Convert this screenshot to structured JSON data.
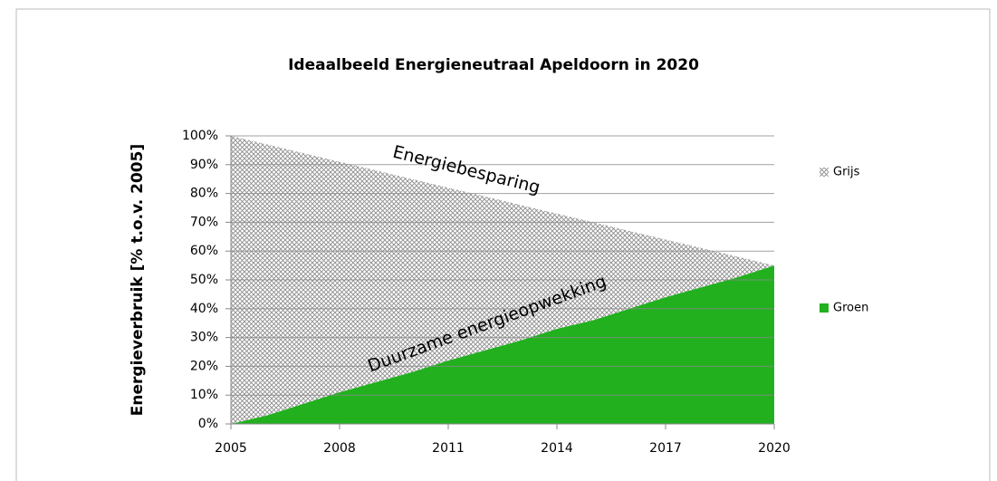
{
  "chart_data": {
    "type": "stacked_area",
    "title": "Ideaalbeeld Energieneutraal Apeldoorn in 2020",
    "y_label": "Energieverbruik [% t.o.v. 2005]",
    "annotations": [
      "Energiebesparing",
      "Duurzame energieopwekking"
    ],
    "x": [
      2005,
      2006,
      2007,
      2008,
      2009,
      2010,
      2011,
      2012,
      2013,
      2014,
      2015,
      2016,
      2017,
      2018,
      2019,
      2020
    ],
    "series": [
      {
        "name": "Groen",
        "color": "#22b01f",
        "values": [
          0,
          3,
          7,
          11,
          14.5,
          18,
          22,
          25.5,
          29,
          33,
          36,
          40,
          44,
          47.5,
          51,
          55
        ]
      },
      {
        "name": "Grijs",
        "color": "#9a9a9a",
        "values": [
          100,
          94,
          87,
          80,
          73.5,
          67,
          60,
          53.5,
          47,
          40,
          34,
          27,
          20,
          13.5,
          7,
          0
        ]
      }
    ],
    "xlim": [
      2005,
      2020
    ],
    "xticks": [
      2005,
      2008,
      2011,
      2014,
      2017,
      2020
    ],
    "ylim": [
      0,
      100
    ],
    "yticks": [
      {
        "value": 0,
        "label": "0%"
      },
      {
        "value": 10,
        "label": "10%"
      },
      {
        "value": 20,
        "label": "20%"
      },
      {
        "value": 30,
        "label": "30%"
      },
      {
        "value": 40,
        "label": "40%"
      },
      {
        "value": 50,
        "label": "50%"
      },
      {
        "value": 60,
        "label": "60%"
      },
      {
        "value": 70,
        "label": "70%"
      },
      {
        "value": 80,
        "label": "80%"
      },
      {
        "value": 90,
        "label": "90%"
      },
      {
        "value": 100,
        "label": "100%"
      }
    ],
    "grid": true,
    "legend": "right"
  }
}
